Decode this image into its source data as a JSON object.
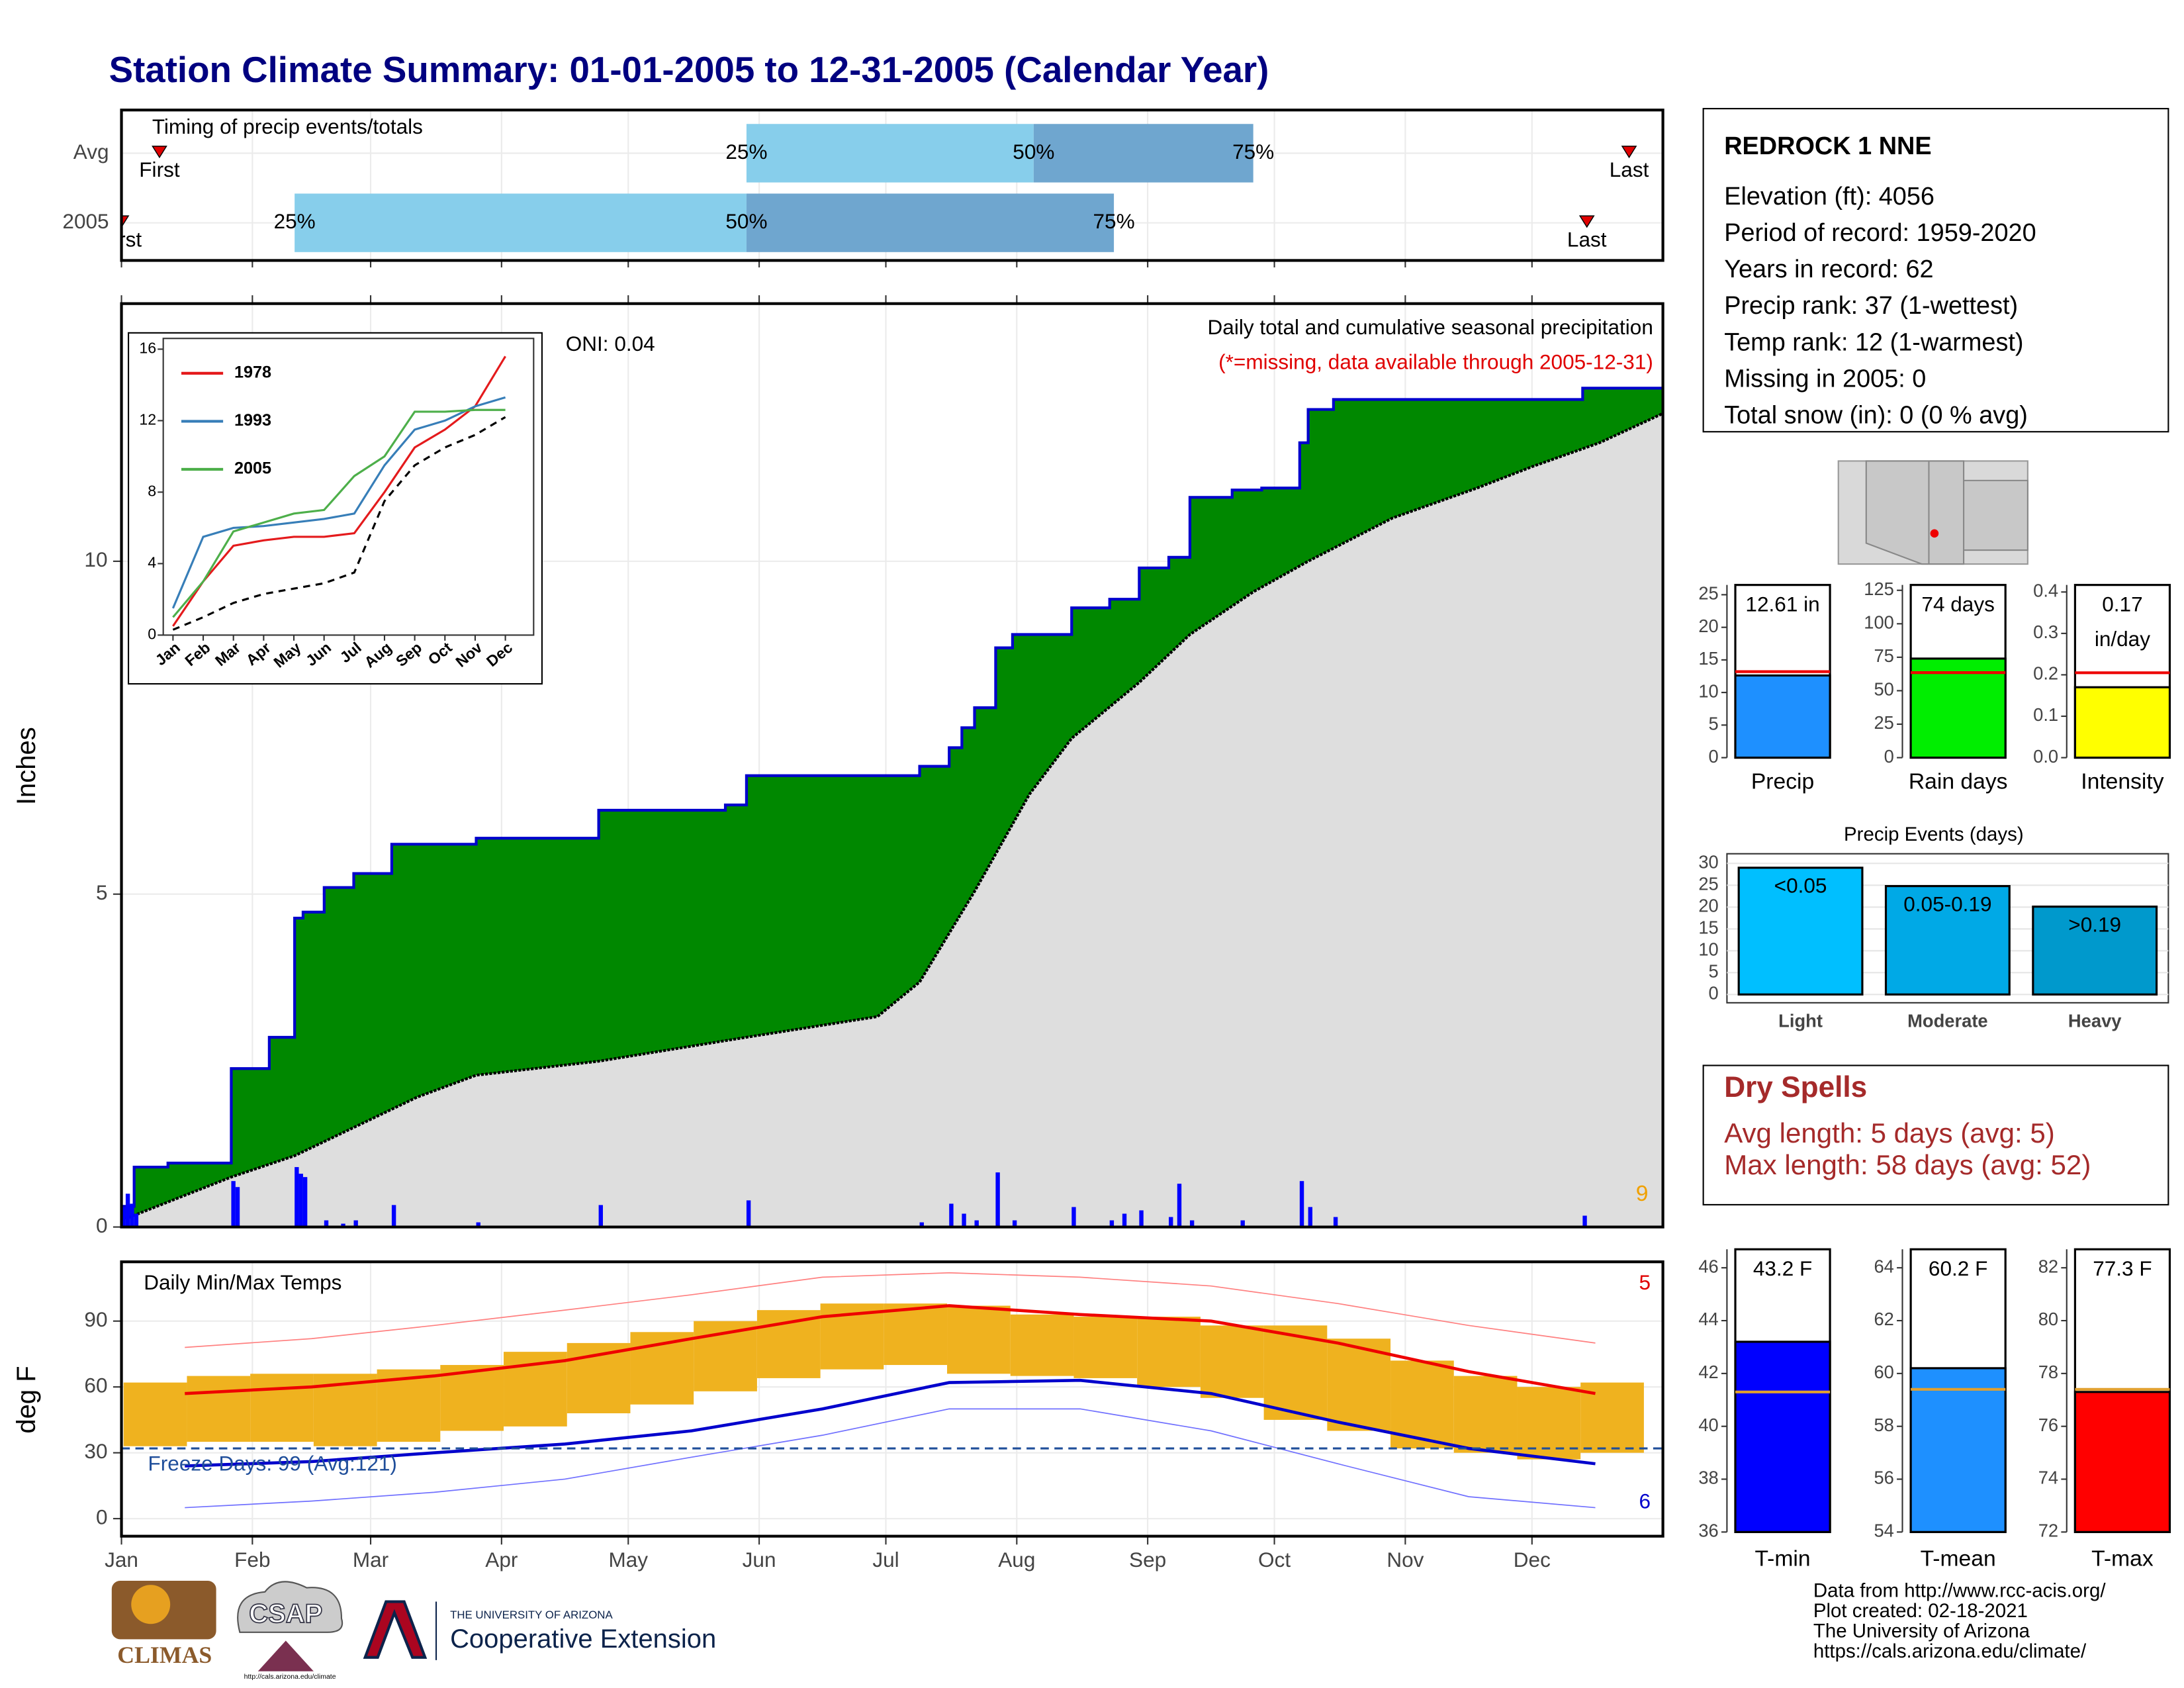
{
  "title": "Station Climate Summary: 01-01-2005 to 12-31-2005 (Calendar Year)",
  "months": {
    "ticks": [
      {
        "value": 0,
        "label": "Jan"
      },
      {
        "value": 31,
        "label": "Feb"
      },
      {
        "value": 59,
        "label": "Mar"
      },
      {
        "value": 90,
        "label": "Apr"
      },
      {
        "value": 120,
        "label": "May"
      },
      {
        "value": 151,
        "label": "Jun"
      },
      {
        "value": 181,
        "label": "Jul"
      },
      {
        "value": 212,
        "label": "Aug"
      },
      {
        "value": 243,
        "label": "Sep"
      },
      {
        "value": 273,
        "label": "Oct"
      },
      {
        "value": 304,
        "label": "Nov"
      },
      {
        "value": 334,
        "label": "Dec"
      }
    ]
  },
  "timing": {
    "type": "timing",
    "title": "Timing of precip events/totals",
    "categories": [
      "Avg",
      "2005"
    ],
    "xlim": [
      0,
      365
    ],
    "first": [
      9,
      0
    ],
    "p25": [
      148,
      41
    ],
    "p50": [
      216,
      148
    ],
    "p75": [
      268,
      235
    ],
    "last": [
      357,
      347
    ],
    "labels": {
      "first": "First",
      "p25": "25%",
      "p50": "50%",
      "p75": "75%",
      "last": "Last"
    },
    "colors": {
      "early": "#87ceeb",
      "late": "#6fa6cf",
      "marker": "#e00000"
    }
  },
  "precip": {
    "type": "area_step",
    "title": "Daily total and cumulative seasonal precipitation",
    "subtitle": "(*=missing, data available through 2005-12-31)",
    "annotation": "ONI: 0.04",
    "count_label": "9",
    "ylabel": "Inches",
    "xlim": [
      0,
      365
    ],
    "ylim": [
      0,
      13.87
    ],
    "yticks": [
      0,
      5,
      10
    ],
    "cumulative": {
      "color": "#008800",
      "line_color": "#0000cc",
      "x": [
        0,
        3,
        11,
        26,
        35,
        41,
        43,
        48,
        55,
        64,
        84,
        113,
        143,
        148,
        189,
        196,
        199,
        202,
        207,
        211,
        225,
        234,
        241,
        248,
        253,
        263,
        270,
        279,
        281,
        287,
        346,
        365
      ],
      "values": [
        0.31,
        0.9,
        0.96,
        2.38,
        2.85,
        4.64,
        4.73,
        5.1,
        5.31,
        5.75,
        5.84,
        6.26,
        6.34,
        6.78,
        6.92,
        7.2,
        7.5,
        7.8,
        8.7,
        8.9,
        9.3,
        9.43,
        9.9,
        10.06,
        10.96,
        11.07,
        11.1,
        11.78,
        12.28,
        12.43,
        12.6,
        12.6
      ]
    },
    "average": {
      "color": "#dedede",
      "line_color": "#000000",
      "x": [
        0,
        26,
        41,
        70,
        84,
        113,
        148,
        179,
        189,
        202,
        215,
        225,
        241,
        253,
        268,
        281,
        301,
        321,
        334,
        350,
        365
      ],
      "values": [
        0.1,
        0.75,
        1.07,
        1.95,
        2.28,
        2.49,
        2.85,
        3.16,
        3.68,
        5.04,
        6.5,
        7.34,
        8.18,
        8.9,
        9.54,
        10.0,
        10.65,
        11.1,
        11.42,
        11.78,
        12.22
      ]
    },
    "daily": {
      "color": "#0000ff",
      "x": [
        0,
        1,
        2,
        3,
        26,
        27,
        41,
        42,
        43,
        48,
        52,
        55,
        64,
        84,
        113,
        148,
        189,
        196,
        199,
        202,
        207,
        211,
        225,
        234,
        237,
        241,
        248,
        250,
        253,
        265,
        279,
        281,
        287,
        346
      ],
      "values": [
        0.3,
        0.5,
        0.35,
        0.2,
        0.69,
        0.6,
        0.9,
        0.8,
        0.75,
        0.1,
        0.05,
        0.1,
        0.33,
        0.07,
        0.33,
        0.4,
        0.07,
        0.35,
        0.2,
        0.1,
        0.82,
        0.1,
        0.3,
        0.1,
        0.2,
        0.25,
        0.15,
        0.65,
        0.1,
        0.1,
        0.69,
        0.3,
        0.15,
        0.17
      ]
    }
  },
  "inset": {
    "type": "line",
    "categories": [
      "Jan",
      "Feb",
      "Mar",
      "Apr",
      "May",
      "Jun",
      "Jul",
      "Aug",
      "Sep",
      "Oct",
      "Nov",
      "Dec"
    ],
    "ylim": [
      0,
      16.6
    ],
    "yticks": [
      0,
      4,
      8,
      12,
      16
    ],
    "series": [
      {
        "name": "1978",
        "color": "#e41a1c",
        "values": [
          0.5,
          3,
          5,
          5.3,
          5.5,
          5.5,
          5.7,
          8,
          10.5,
          11.5,
          12.8,
          15.6
        ]
      },
      {
        "name": "1993",
        "color": "#377eb8",
        "values": [
          1.5,
          5.5,
          6,
          6.1,
          6.3,
          6.5,
          6.8,
          9.5,
          11.5,
          12,
          12.8,
          13.3
        ]
      },
      {
        "name": "2005",
        "color": "#4daf4a",
        "values": [
          1,
          3,
          5.8,
          6.3,
          6.8,
          7,
          8.9,
          10,
          12.5,
          12.5,
          12.6,
          12.6
        ]
      }
    ],
    "average": {
      "color": "#000000",
      "values": [
        0.3,
        1,
        1.8,
        2.3,
        2.6,
        2.9,
        3.5,
        7.5,
        9.5,
        10.5,
        11.2,
        12.2
      ]
    }
  },
  "temps": {
    "type": "range",
    "title": "Daily Min/Max Temps",
    "ylabel": "deg F",
    "freeze_label": "Freeze Days: 99 (Avg:121)",
    "high_count": "5",
    "low_count": "6",
    "ylim": [
      -8,
      117
    ],
    "yticks": [
      0,
      30,
      60,
      90
    ],
    "freeze_line": 32,
    "daily": {
      "color": "#efb21f",
      "x": [
        8,
        23,
        38,
        53,
        68,
        83,
        98,
        113,
        128,
        143,
        158,
        173,
        188,
        203,
        218,
        233,
        248,
        263,
        278,
        293,
        308,
        323,
        338,
        353
      ],
      "max": [
        62,
        65,
        66,
        66,
        68,
        70,
        76,
        80,
        85,
        90,
        95,
        98,
        98,
        97,
        93,
        92,
        92,
        88,
        88,
        82,
        72,
        65,
        60,
        62
      ],
      "min": [
        33,
        35,
        35,
        33,
        35,
        40,
        42,
        48,
        52,
        58,
        64,
        68,
        70,
        66,
        65,
        64,
        60,
        55,
        45,
        40,
        32,
        30,
        27,
        30
      ]
    },
    "x": [
      15,
      45,
      74,
      105,
      135,
      166,
      196,
      227,
      258,
      288,
      319,
      349
    ],
    "avg_max": {
      "color": "#ee0000",
      "values": [
        57,
        60,
        65,
        72,
        82,
        92,
        97,
        93,
        90,
        80,
        67,
        57
      ]
    },
    "avg_min": {
      "color": "#0000cc",
      "values": [
        24,
        26,
        30,
        34,
        40,
        50,
        62,
        63,
        57,
        44,
        32,
        25
      ]
    },
    "record_max": {
      "color": "#ff8080",
      "values": [
        78,
        82,
        88,
        95,
        102,
        110,
        112,
        110,
        106,
        98,
        88,
        80
      ]
    },
    "record_min": {
      "color": "#7070ff",
      "values": [
        5,
        8,
        12,
        18,
        28,
        38,
        50,
        50,
        40,
        25,
        10,
        5
      ]
    }
  },
  "station": {
    "name": "REDROCK 1 NNE",
    "lines": [
      "Elevation (ft): 4056",
      "Period of record: 1959-2020",
      "Years in record: 62",
      "Precip rank: 37 (1-wettest)",
      "Temp rank: 12 (1-warmest)",
      "Missing in 2005: 0",
      "Total snow (in): 0 (0 % avg)"
    ]
  },
  "summary_bars": [
    {
      "type": "bar",
      "name": "Precip",
      "value": 12.61,
      "value_label": [
        "12.61 in"
      ],
      "avg": 13.2,
      "color": "#1e90ff",
      "avg_color": "#ee0000",
      "ylim": [
        0,
        26.5
      ],
      "yticks": [
        0,
        5,
        10,
        15,
        20,
        25
      ]
    },
    {
      "type": "bar",
      "name": "Rain days",
      "value": 74,
      "value_label": [
        "74 days"
      ],
      "avg": 63.5,
      "color": "#00ee00",
      "avg_color": "#ee0000",
      "ylim": [
        0,
        129
      ],
      "yticks": [
        0,
        25,
        50,
        75,
        100,
        125
      ]
    },
    {
      "type": "bar",
      "name": "Intensity",
      "value": 0.17,
      "value_label": [
        "0.17",
        "in/day"
      ],
      "avg": 0.205,
      "color": "#ffff00",
      "avg_color": "#ee0000",
      "ylim": [
        0,
        0.417
      ],
      "yticks": [
        {
          "value": 0,
          "label": "0.0"
        },
        0.1,
        0.2,
        0.3,
        0.4
      ]
    }
  ],
  "events": {
    "type": "bar",
    "title": "Precip Events (days)",
    "categories": [
      "Light",
      "Moderate",
      "Heavy"
    ],
    "values": [
      29,
      24.8,
      20.1
    ],
    "value_labels": [
      "<0.05",
      "0.05-0.19",
      ">0.19"
    ],
    "colors": [
      "#00bfff",
      "#00a9e6",
      "#0099cc"
    ],
    "ylim": [
      -1.9,
      32.2
    ],
    "yticks": [
      0,
      5,
      10,
      15,
      20,
      25,
      30
    ]
  },
  "dry_spells": {
    "title": "Dry Spells",
    "lines": [
      "Avg length: 5 days (avg: 5)",
      "Max length: 58 days (avg: 52)"
    ]
  },
  "temp_bars": [
    {
      "type": "bar",
      "name": "T-min",
      "value": 43.2,
      "value_label": [
        "43.2 F"
      ],
      "avg": 41.3,
      "color": "#0000ff",
      "avg_color": "#e0a030",
      "ylim": [
        36,
        46.7
      ],
      "yticks": [
        36,
        38,
        40,
        42,
        44,
        46
      ]
    },
    {
      "type": "bar",
      "name": "T-mean",
      "value": 60.2,
      "value_label": [
        "60.2 F"
      ],
      "avg": 59.4,
      "color": "#1e90ff",
      "avg_color": "#e0a030",
      "ylim": [
        54,
        64.7
      ],
      "yticks": [
        54,
        56,
        58,
        60,
        62,
        64
      ]
    },
    {
      "type": "bar",
      "name": "T-max",
      "value": 77.3,
      "value_label": [
        "77.3 F"
      ],
      "avg": 77.4,
      "color": "#ff0000",
      "avg_color": "#e0a030",
      "ylim": [
        72,
        82.7
      ],
      "yticks": [
        72,
        74,
        76,
        78,
        80,
        82
      ]
    }
  ],
  "footer": [
    "Data from http://www.rcc-acis.org/",
    "Plot created: 02-18-2021",
    "The University of Arizona",
    "https://cals.arizona.edu/climate/"
  ],
  "logos": {
    "climas": "CLIMAS",
    "csap": "CSAP",
    "csap_url": "http://cals.arizona.edu/climate",
    "ua_small": "THE UNIVERSITY OF ARIZONA",
    "ua": "Cooperative Extension"
  }
}
